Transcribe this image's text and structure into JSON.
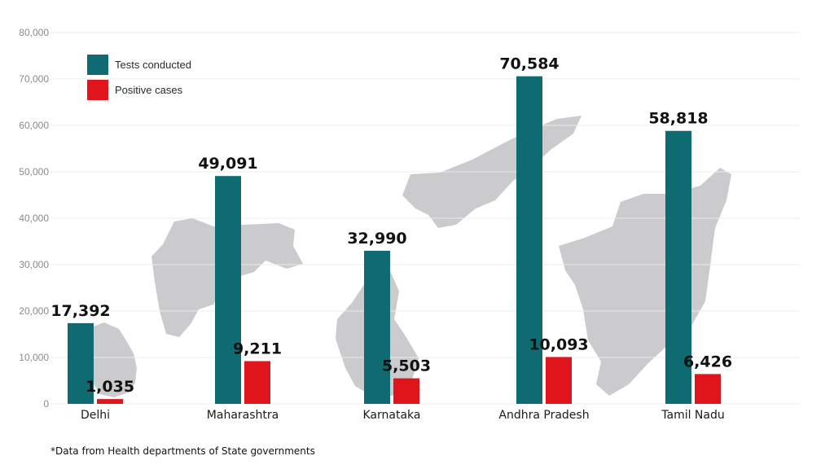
{
  "chart_data": {
    "type": "bar",
    "categories": [
      "Delhi",
      "Maharashtra",
      "Karnataka",
      "Andhra Pradesh",
      "Tamil Nadu"
    ],
    "series": [
      {
        "name": "Tests conducted",
        "color": "#0e6b71",
        "values": [
          17392,
          49091,
          32990,
          70584,
          58818
        ],
        "labels": [
          "17,392",
          "49,091",
          "32,990",
          "70,584",
          "58,818"
        ]
      },
      {
        "name": "Positive cases",
        "color": "#e0141b",
        "values": [
          1035,
          9211,
          5503,
          10093,
          6426
        ],
        "labels": [
          "1,035",
          "9,211",
          "5,503",
          "10,093",
          "6,426"
        ]
      }
    ],
    "ylim": [
      0,
      80000
    ],
    "yticks": [
      0,
      10000,
      20000,
      30000,
      40000,
      50000,
      60000,
      70000,
      80000
    ],
    "ytick_labels": [
      "0",
      "10,000",
      "20,000",
      "30,000",
      "40,000",
      "50,000",
      "60,000",
      "70,000",
      "80,000"
    ],
    "grid": true,
    "legend_position": "top-left",
    "background_maps": [
      "Delhi",
      "Maharashtra",
      "Karnataka",
      "Andhra Pradesh",
      "Tamil Nadu"
    ],
    "footnote": "*Data from Health departments of State governments"
  }
}
